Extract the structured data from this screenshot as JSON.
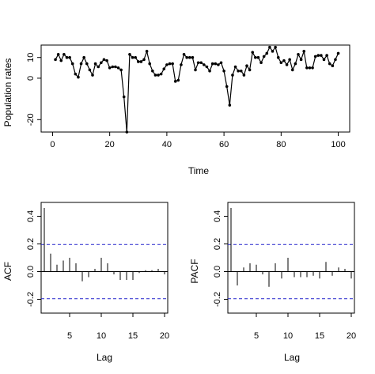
{
  "chart_data": [
    {
      "type": "line",
      "title": "",
      "xlabel": "Time",
      "ylabel": "Population rates",
      "xlim": [
        0,
        100
      ],
      "ylim": [
        -26,
        16
      ],
      "xticks": [
        "0",
        "20",
        "40",
        "60",
        "80",
        "100"
      ],
      "yticks": [
        "-20",
        "0",
        "10"
      ],
      "x": [
        1,
        2,
        3,
        4,
        5,
        6,
        7,
        8,
        9,
        10,
        11,
        12,
        13,
        14,
        15,
        16,
        17,
        18,
        19,
        20,
        21,
        22,
        23,
        24,
        25,
        26,
        27,
        28,
        29,
        30,
        31,
        32,
        33,
        34,
        35,
        36,
        37,
        38,
        39,
        40,
        41,
        42,
        43,
        44,
        45,
        46,
        47,
        48,
        49,
        50,
        51,
        52,
        53,
        54,
        55,
        56,
        57,
        58,
        59,
        60,
        61,
        62,
        63,
        64,
        65,
        66,
        67,
        68,
        69,
        70,
        71,
        72,
        73,
        74,
        75,
        76,
        77,
        78,
        79,
        80,
        81,
        82,
        83,
        84,
        85,
        86,
        87,
        88,
        89,
        90,
        91,
        92,
        93,
        94,
        95,
        96,
        97,
        98,
        99,
        100
      ],
      "values": [
        9,
        11.5,
        8.5,
        11.5,
        10,
        10,
        7,
        2,
        0.5,
        7,
        10,
        7,
        4,
        1.5,
        7,
        5.5,
        7.5,
        9,
        8.5,
        5,
        5.5,
        5.5,
        5,
        4,
        -9,
        -26,
        11.5,
        10,
        10,
        8,
        8,
        9,
        13,
        7,
        3.5,
        1.5,
        1.5,
        2,
        4.5,
        6.5,
        7,
        7,
        -1.5,
        -1,
        6.5,
        11.5,
        10,
        10,
        10,
        4,
        7.5,
        7.5,
        6.5,
        5.5,
        3.5,
        7,
        7,
        6.5,
        7.5,
        3.5,
        -4,
        -13,
        1.5,
        5.5,
        3.5,
        3.5,
        1.5,
        6,
        4,
        12.5,
        10,
        10,
        7.5,
        10.5,
        12,
        15,
        13,
        15,
        10,
        7.5,
        8.5,
        6.5,
        9,
        4,
        7,
        11.5,
        9,
        13,
        5,
        5,
        5,
        10.5,
        11,
        11,
        9,
        11,
        7,
        6,
        9,
        12
      ]
    },
    {
      "type": "bar",
      "title": "",
      "xlabel": "Lag",
      "ylabel": "ACF",
      "xlim": [
        0.5,
        20.5
      ],
      "ylim": [
        -0.3,
        0.5
      ],
      "xticks": [
        "5",
        "10",
        "15",
        "20"
      ],
      "yticks": [
        "-0.2",
        "0.0",
        "0.2",
        "0.4"
      ],
      "confidence_bound": 0.196,
      "categories": [
        1,
        2,
        3,
        4,
        5,
        6,
        7,
        8,
        9,
        10,
        11,
        12,
        13,
        14,
        15,
        16,
        17,
        18,
        19,
        20
      ],
      "values": [
        0.46,
        0.13,
        0.05,
        0.08,
        0.1,
        0.06,
        -0.07,
        -0.04,
        0.02,
        0.1,
        0.06,
        -0.02,
        -0.06,
        -0.06,
        -0.06,
        -0.01,
        0.01,
        0.01,
        0.02,
        -0.02
      ]
    },
    {
      "type": "bar",
      "title": "",
      "xlabel": "Lag",
      "ylabel": "PACF",
      "xlim": [
        0.5,
        20.5
      ],
      "ylim": [
        -0.3,
        0.5
      ],
      "xticks": [
        "5",
        "10",
        "15",
        "20"
      ],
      "yticks": [
        "-0.2",
        "0.0",
        "0.2",
        "0.4"
      ],
      "confidence_bound": 0.196,
      "categories": [
        1,
        2,
        3,
        4,
        5,
        6,
        7,
        8,
        9,
        10,
        11,
        12,
        13,
        14,
        15,
        16,
        17,
        18,
        19,
        20
      ],
      "values": [
        0.46,
        -0.1,
        0.03,
        0.06,
        0.05,
        -0.02,
        -0.11,
        0.06,
        -0.05,
        0.1,
        -0.04,
        -0.04,
        -0.04,
        -0.03,
        -0.05,
        0.07,
        -0.03,
        0.03,
        0.02,
        -0.05
      ]
    }
  ]
}
